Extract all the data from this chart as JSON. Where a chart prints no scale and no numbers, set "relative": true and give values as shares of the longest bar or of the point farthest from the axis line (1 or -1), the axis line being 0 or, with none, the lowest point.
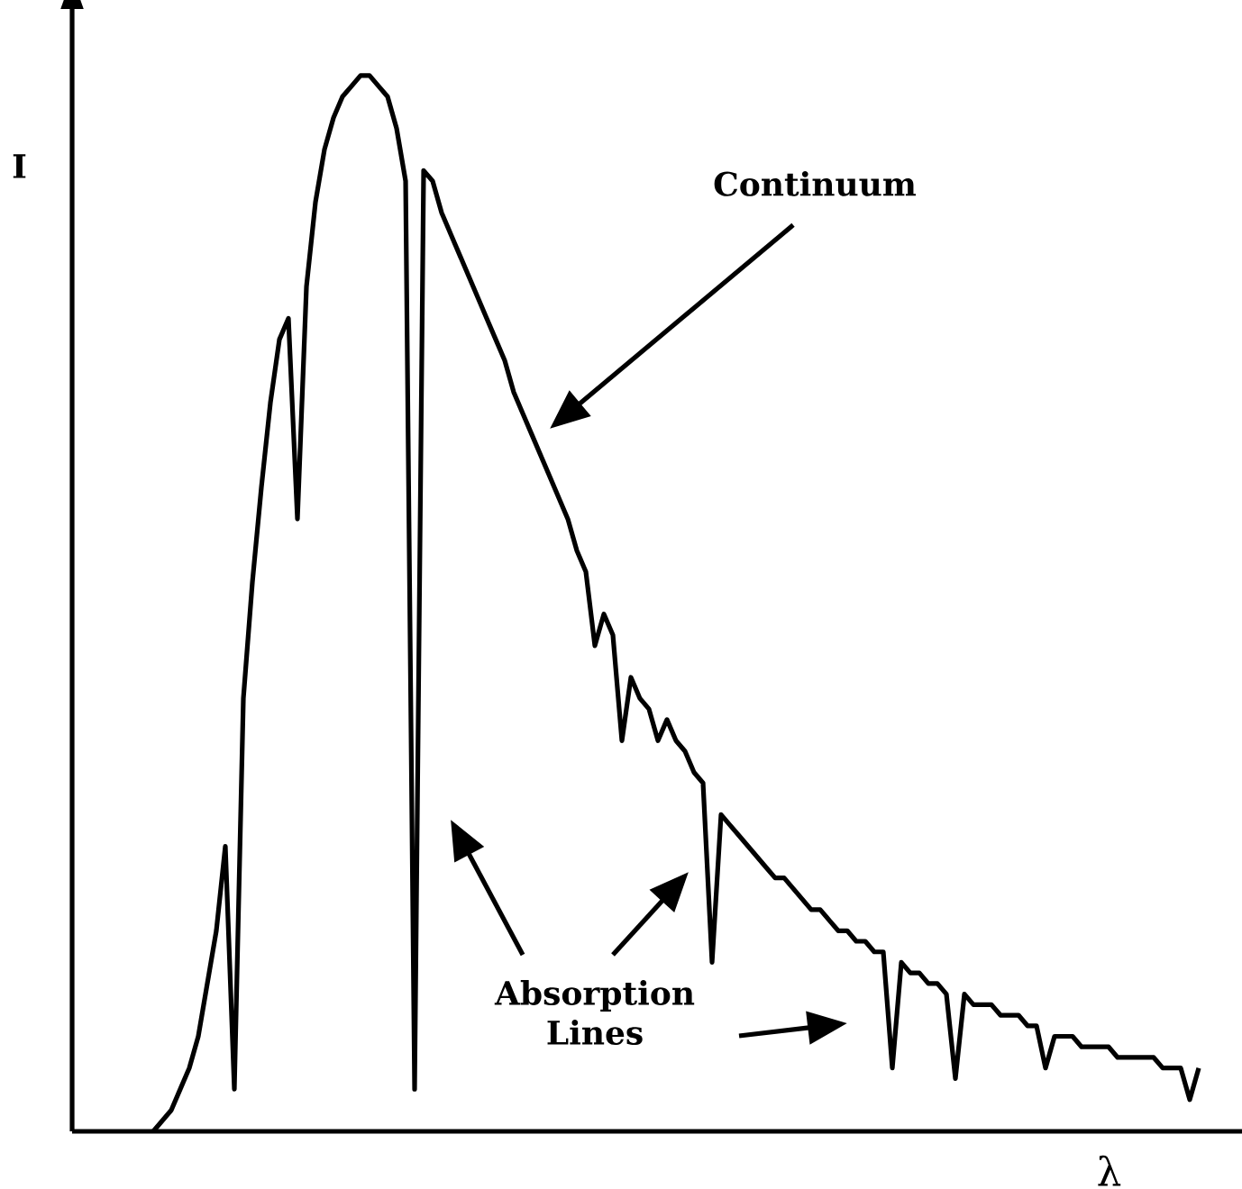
{
  "chart_data": {
    "type": "line",
    "relative": true,
    "xlabel": "λ",
    "ylabel": "I",
    "annotations": [
      "Continuum",
      "Absorption Lines"
    ],
    "categories": [
      null,
      null,
      null,
      null,
      null,
      null,
      null,
      null,
      null,
      null,
      null,
      null,
      null,
      null,
      null,
      null,
      null,
      null,
      null,
      null,
      null,
      null,
      null,
      null,
      null,
      null,
      null,
      null,
      null,
      null,
      null,
      null,
      null,
      null,
      null,
      null,
      null,
      null,
      null,
      null,
      null,
      null,
      null,
      null,
      null,
      null,
      null,
      null,
      null,
      null,
      null,
      null,
      null,
      null,
      null,
      null,
      null,
      null,
      null,
      null,
      null,
      null,
      null,
      null,
      null,
      null,
      null,
      null,
      null,
      null,
      null,
      null,
      null,
      null,
      null,
      null,
      null,
      null,
      null,
      null,
      null,
      null,
      null,
      null,
      null,
      null,
      null,
      null,
      null,
      null,
      null,
      null,
      null,
      null,
      null,
      null,
      null,
      null,
      null,
      null,
      null,
      null,
      null,
      null,
      null,
      null,
      null,
      null,
      null,
      null,
      null,
      null,
      null,
      null,
      null,
      null,
      null
    ],
    "series": [
      {
        "color": "#000000",
        "values": [
          0,
          0.01,
          0.02,
          0.04,
          0.06,
          0.09,
          0.14,
          0.19,
          0.27,
          0.04,
          0.41,
          0.52,
          0.61,
          0.69,
          0.75,
          0.77,
          0.58,
          0.8,
          0.88,
          0.93,
          0.96,
          0.98,
          0.99,
          1,
          1,
          0.99,
          0.98,
          0.95,
          0.9,
          0.04,
          0.91,
          0.9,
          0.87,
          0.85,
          0.83,
          0.81,
          0.79,
          0.77,
          0.75,
          0.73,
          0.7,
          0.68,
          0.66,
          0.64,
          0.62,
          0.6,
          0.58,
          0.55,
          0.53,
          0.46,
          0.49,
          0.47,
          0.37,
          0.43,
          0.41,
          0.4,
          0.37,
          0.39,
          0.37,
          0.36,
          0.34,
          0.33,
          0.16,
          0.3,
          0.29,
          0.28,
          0.27,
          0.26,
          0.25,
          0.24,
          0.24,
          0.23,
          0.22,
          0.21,
          0.21,
          0.2,
          0.19,
          0.19,
          0.18,
          0.18,
          0.17,
          0.17,
          0.06,
          0.16,
          0.15,
          0.15,
          0.14,
          0.14,
          0.13,
          0.05,
          0.13,
          0.12,
          0.12,
          0.12,
          0.11,
          0.11,
          0.11,
          0.1,
          0.1,
          0.06,
          0.09,
          0.09,
          0.09,
          0.08,
          0.08,
          0.08,
          0.08,
          0.07,
          0.07,
          0.07,
          0.07,
          0.07,
          0.06,
          0.06,
          0.06,
          0.03,
          0.06
        ]
      }
    ]
  }
}
